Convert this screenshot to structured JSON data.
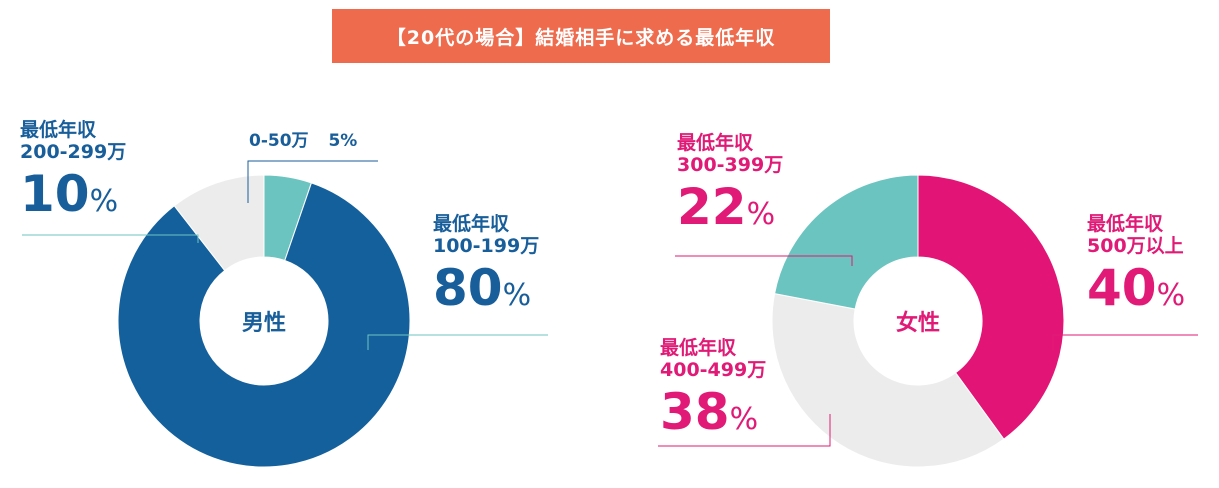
{
  "title": "【20代の場合】結婚相手に求める最低年収",
  "colors": {
    "male_main": "#14609C",
    "female_main": "#E21577",
    "teal": "#6BC4BF",
    "gray": "#ECECEC",
    "banner": "#EE6C4D"
  },
  "chart_data": [
    {
      "type": "pie",
      "center_label": "男性",
      "slices": [
        {
          "label": "0-50万",
          "value": 5,
          "color": "#6BC4BF"
        },
        {
          "label": "100-199万",
          "value": 80,
          "color": "#14609C"
        },
        {
          "label": "200-299万",
          "value": 10,
          "color": "#ECECEC"
        }
      ]
    },
    {
      "type": "pie",
      "center_label": "女性",
      "slices": [
        {
          "label": "500万以上",
          "value": 40,
          "color": "#E21577"
        },
        {
          "label": "400-499万",
          "value": 38,
          "color": "#ECECEC"
        },
        {
          "label": "300-399万",
          "value": 22,
          "color": "#6BC4BF"
        }
      ]
    }
  ],
  "labels": {
    "male": {
      "s0_50": {
        "title": "0-50万",
        "value": "5%"
      },
      "s100_199": {
        "line1": "最低年収",
        "line2": "100-199万",
        "num": "80",
        "unit": "%"
      },
      "s200_299": {
        "line1": "最低年収",
        "line2": "200-299万",
        "num": "10",
        "unit": "%"
      }
    },
    "female": {
      "s300_399": {
        "line1": "最低年収",
        "line2": "300-399万",
        "num": "22",
        "unit": "%"
      },
      "s400_499": {
        "line1": "最低年収",
        "line2": "400-499万",
        "num": "38",
        "unit": "%"
      },
      "s500": {
        "line1": "最低年収",
        "line2": "500万以上",
        "num": "40",
        "unit": "%"
      }
    }
  }
}
